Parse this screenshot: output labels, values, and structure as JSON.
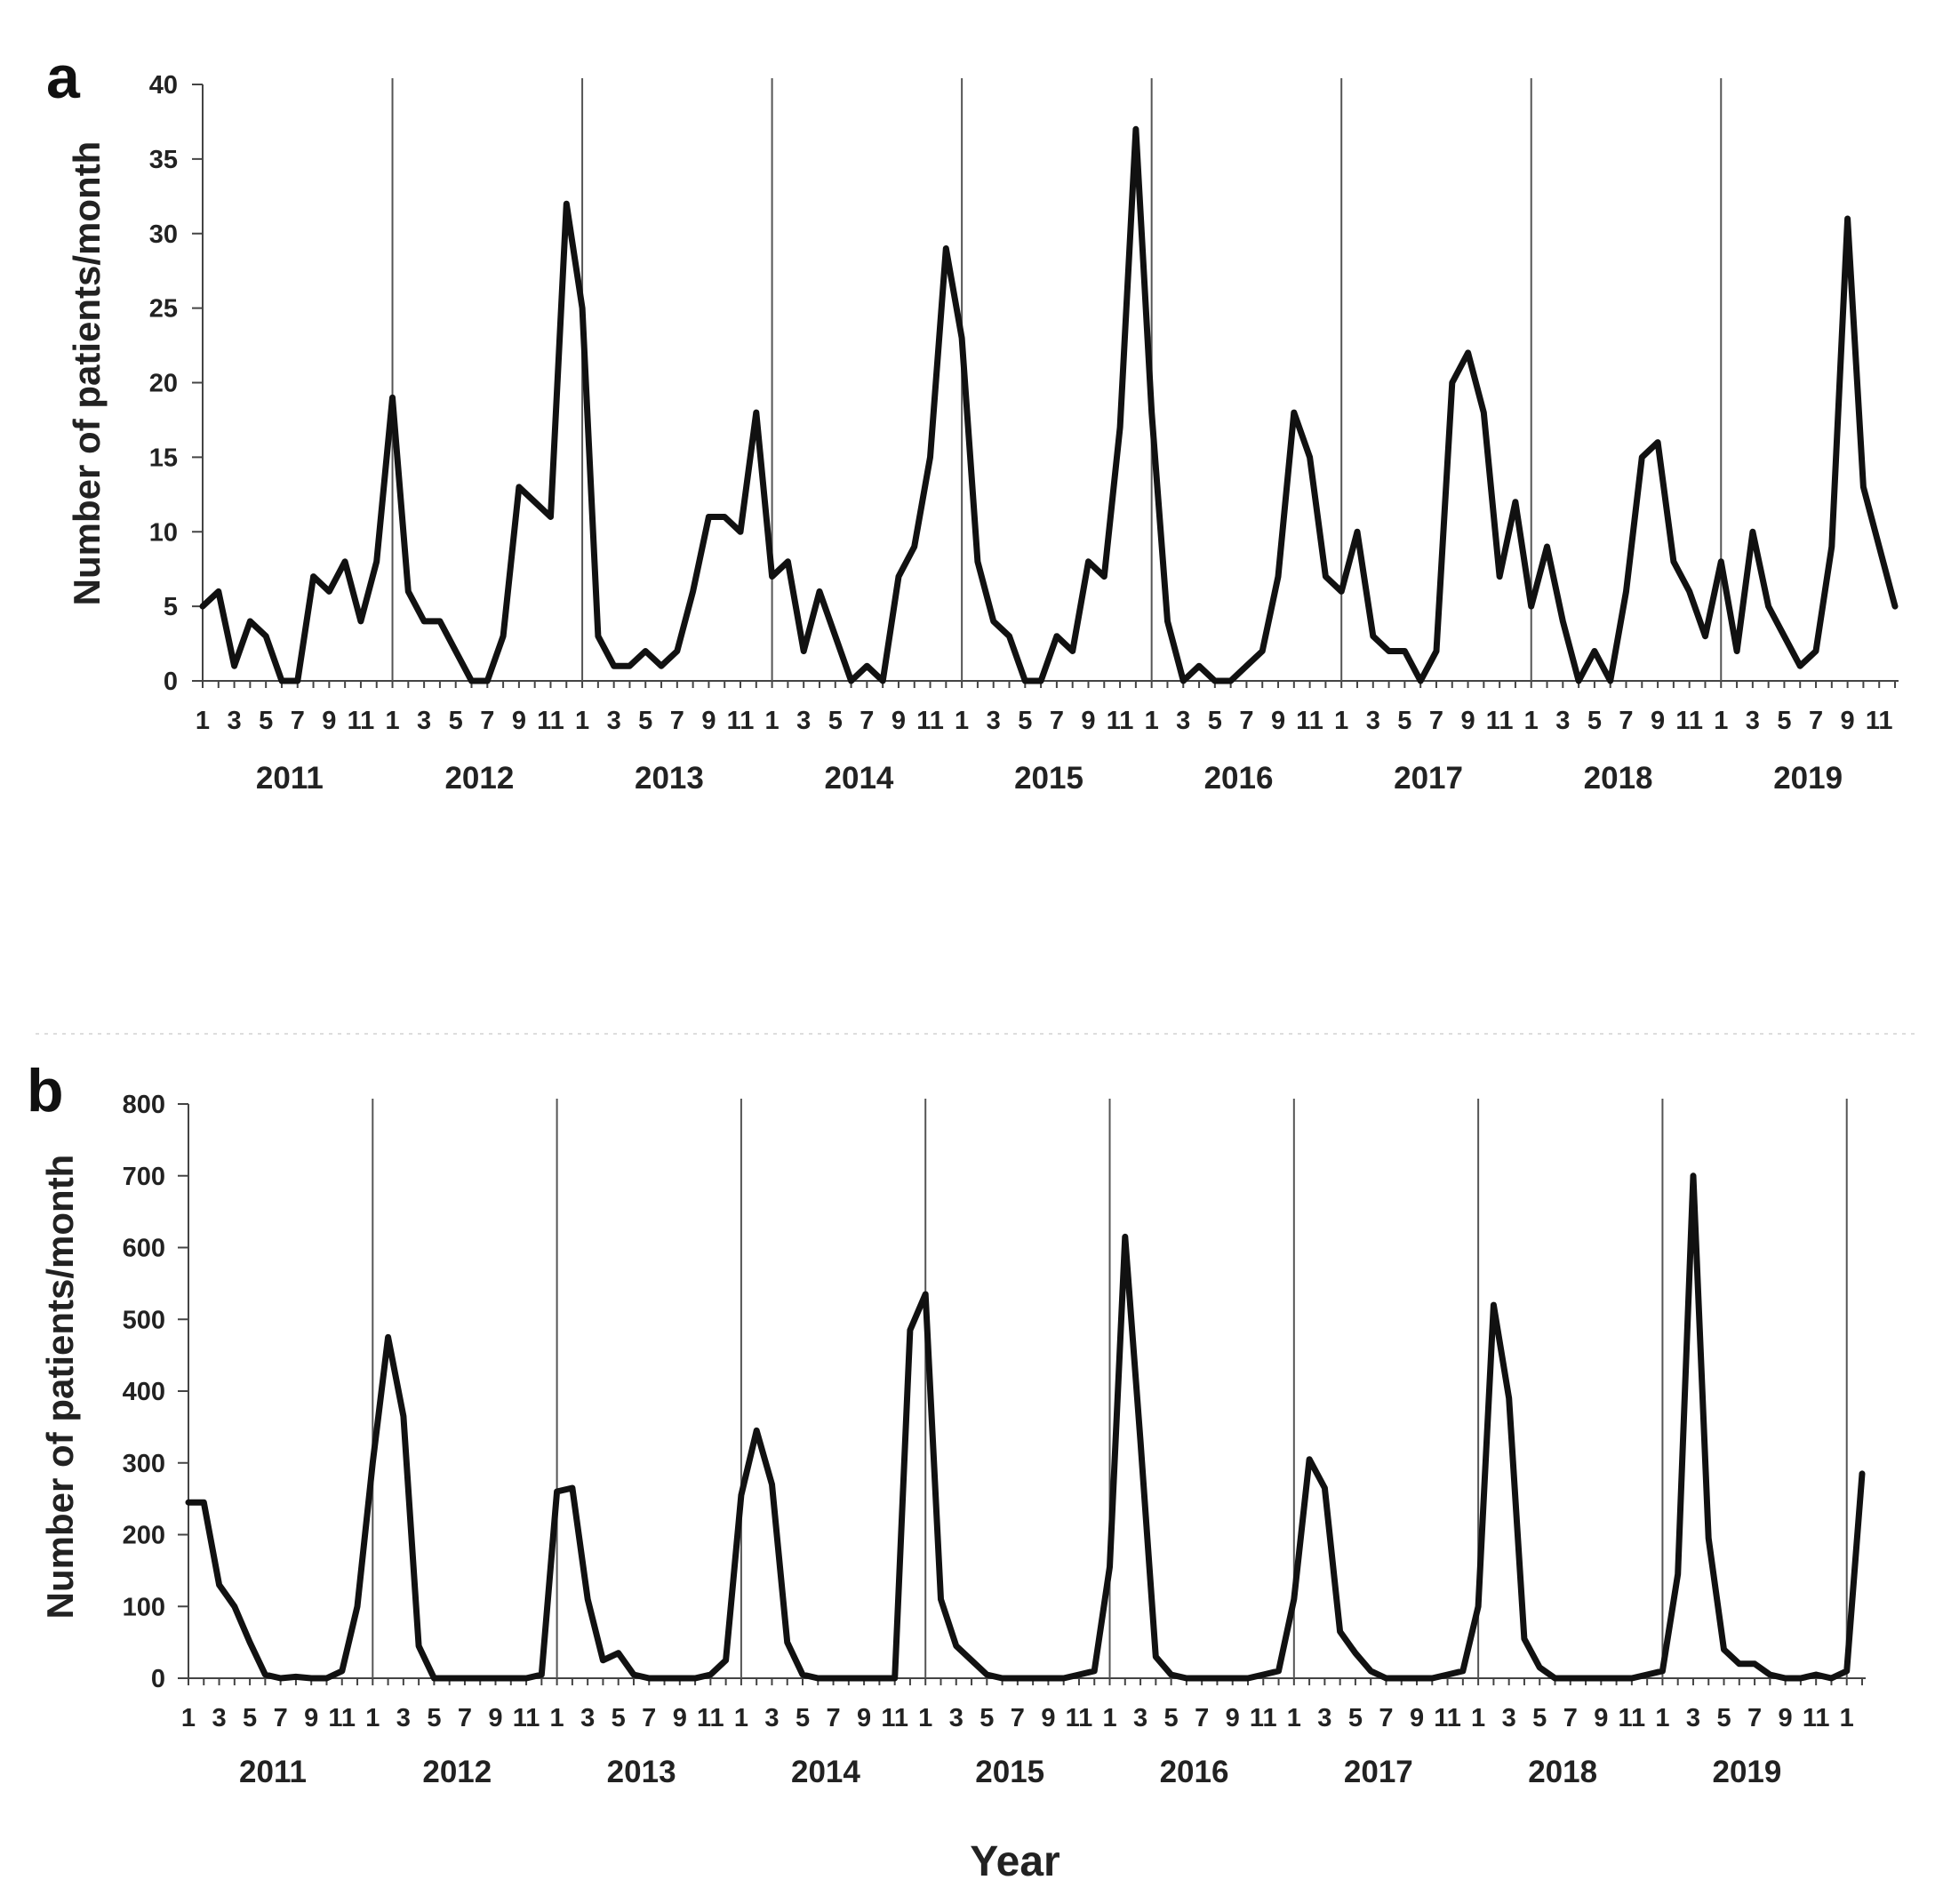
{
  "chart_data": [
    {
      "panel": "a",
      "type": "line",
      "title": "",
      "xlabel": "",
      "ylabel": "Number of patients/month",
      "ylim": [
        0,
        40
      ],
      "yticks": [
        0,
        5,
        10,
        15,
        20,
        25,
        30,
        35,
        40
      ],
      "grid": false,
      "legend": "none",
      "month_tick_labels": [
        "1",
        "3",
        "5",
        "7",
        "9",
        "11"
      ],
      "years": [
        "2011",
        "2012",
        "2013",
        "2014",
        "2015",
        "2016",
        "2017",
        "2018",
        "2019"
      ],
      "series": [
        {
          "name": "Number of patients/month",
          "values": [
            5,
            6,
            1,
            4,
            3,
            0,
            0,
            7,
            6,
            8,
            4,
            8,
            19,
            6,
            4,
            4,
            2,
            0,
            0,
            3,
            13,
            12,
            11,
            32,
            25,
            3,
            1,
            1,
            2,
            1,
            2,
            6,
            11,
            11,
            10,
            18,
            7,
            8,
            2,
            6,
            3,
            0,
            1,
            0,
            7,
            9,
            15,
            29,
            23,
            8,
            4,
            3,
            0,
            0,
            3,
            2,
            8,
            7,
            17,
            37,
            18,
            4,
            0,
            1,
            0,
            0,
            1,
            2,
            7,
            18,
            15,
            7,
            6,
            10,
            3,
            2,
            2,
            0,
            2,
            20,
            22,
            18,
            7,
            12,
            5,
            9,
            4,
            0,
            2,
            0,
            6,
            15,
            16,
            8,
            6,
            3,
            8,
            2,
            10,
            5,
            3,
            1,
            2,
            9,
            31,
            13,
            9,
            5
          ]
        }
      ]
    },
    {
      "panel": "b",
      "type": "line",
      "title": "",
      "xlabel": "Year",
      "ylabel": "Number of patients/month",
      "ylim": [
        0,
        800
      ],
      "yticks": [
        0,
        100,
        200,
        300,
        400,
        500,
        600,
        700,
        800
      ],
      "grid": false,
      "legend": "none",
      "month_tick_labels": [
        "1",
        "3",
        "5",
        "7",
        "9",
        "11"
      ],
      "years": [
        "2011",
        "2012",
        "2013",
        "2014",
        "2015",
        "2016",
        "2017",
        "2018",
        "2019"
      ],
      "series": [
        {
          "name": "Number of patients/month",
          "values": [
            245,
            245,
            130,
            100,
            50,
            5,
            0,
            2,
            0,
            0,
            10,
            100,
            300,
            475,
            365,
            45,
            0,
            0,
            0,
            0,
            0,
            0,
            0,
            5,
            260,
            265,
            110,
            25,
            35,
            5,
            0,
            0,
            0,
            0,
            5,
            25,
            255,
            345,
            270,
            50,
            5,
            0,
            0,
            0,
            0,
            0,
            0,
            485,
            535,
            110,
            45,
            25,
            5,
            0,
            0,
            0,
            0,
            0,
            5,
            10,
            155,
            615,
            330,
            30,
            5,
            0,
            0,
            0,
            0,
            0,
            5,
            10,
            110,
            305,
            265,
            65,
            35,
            10,
            0,
            0,
            0,
            0,
            5,
            10,
            100,
            520,
            390,
            55,
            15,
            0,
            0,
            0,
            0,
            0,
            0,
            5,
            10,
            145,
            700,
            195,
            40,
            20,
            20,
            5,
            0,
            0,
            5,
            0,
            10,
            285
          ]
        }
      ]
    }
  ]
}
